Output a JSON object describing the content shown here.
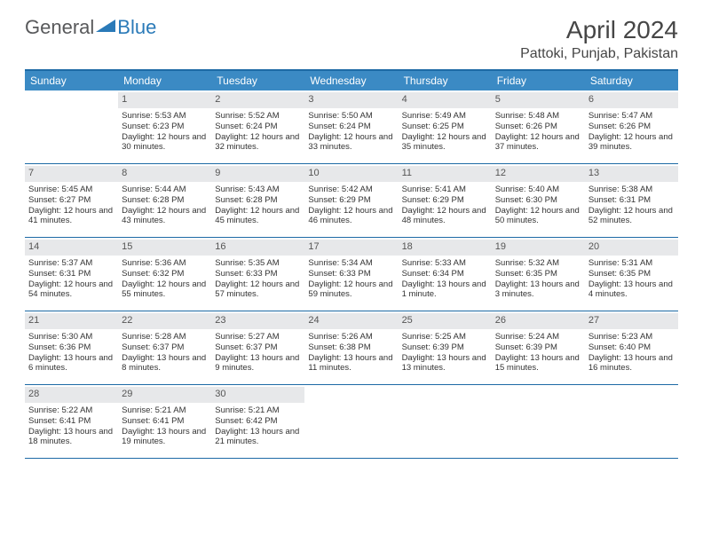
{
  "logo": {
    "text_left": "General",
    "text_right": "Blue"
  },
  "title": "April 2024",
  "location": "Pattoki, Punjab, Pakistan",
  "colors": {
    "header_bg": "#3b8ac4",
    "header_border": "#1d6aa5",
    "daynum_bg": "#e7e8ea",
    "text": "#333333",
    "title": "#464646",
    "logo_gray": "#58595b",
    "logo_blue": "#2a7ab8"
  },
  "day_headers": [
    "Sunday",
    "Monday",
    "Tuesday",
    "Wednesday",
    "Thursday",
    "Friday",
    "Saturday"
  ],
  "weeks": [
    [
      null,
      {
        "n": "1",
        "sr": "5:53 AM",
        "ss": "6:23 PM",
        "dl": "12 hours and 30 minutes."
      },
      {
        "n": "2",
        "sr": "5:52 AM",
        "ss": "6:24 PM",
        "dl": "12 hours and 32 minutes."
      },
      {
        "n": "3",
        "sr": "5:50 AM",
        "ss": "6:24 PM",
        "dl": "12 hours and 33 minutes."
      },
      {
        "n": "4",
        "sr": "5:49 AM",
        "ss": "6:25 PM",
        "dl": "12 hours and 35 minutes."
      },
      {
        "n": "5",
        "sr": "5:48 AM",
        "ss": "6:26 PM",
        "dl": "12 hours and 37 minutes."
      },
      {
        "n": "6",
        "sr": "5:47 AM",
        "ss": "6:26 PM",
        "dl": "12 hours and 39 minutes."
      }
    ],
    [
      {
        "n": "7",
        "sr": "5:45 AM",
        "ss": "6:27 PM",
        "dl": "12 hours and 41 minutes."
      },
      {
        "n": "8",
        "sr": "5:44 AM",
        "ss": "6:28 PM",
        "dl": "12 hours and 43 minutes."
      },
      {
        "n": "9",
        "sr": "5:43 AM",
        "ss": "6:28 PM",
        "dl": "12 hours and 45 minutes."
      },
      {
        "n": "10",
        "sr": "5:42 AM",
        "ss": "6:29 PM",
        "dl": "12 hours and 46 minutes."
      },
      {
        "n": "11",
        "sr": "5:41 AM",
        "ss": "6:29 PM",
        "dl": "12 hours and 48 minutes."
      },
      {
        "n": "12",
        "sr": "5:40 AM",
        "ss": "6:30 PM",
        "dl": "12 hours and 50 minutes."
      },
      {
        "n": "13",
        "sr": "5:38 AM",
        "ss": "6:31 PM",
        "dl": "12 hours and 52 minutes."
      }
    ],
    [
      {
        "n": "14",
        "sr": "5:37 AM",
        "ss": "6:31 PM",
        "dl": "12 hours and 54 minutes."
      },
      {
        "n": "15",
        "sr": "5:36 AM",
        "ss": "6:32 PM",
        "dl": "12 hours and 55 minutes."
      },
      {
        "n": "16",
        "sr": "5:35 AM",
        "ss": "6:33 PM",
        "dl": "12 hours and 57 minutes."
      },
      {
        "n": "17",
        "sr": "5:34 AM",
        "ss": "6:33 PM",
        "dl": "12 hours and 59 minutes."
      },
      {
        "n": "18",
        "sr": "5:33 AM",
        "ss": "6:34 PM",
        "dl": "13 hours and 1 minute."
      },
      {
        "n": "19",
        "sr": "5:32 AM",
        "ss": "6:35 PM",
        "dl": "13 hours and 3 minutes."
      },
      {
        "n": "20",
        "sr": "5:31 AM",
        "ss": "6:35 PM",
        "dl": "13 hours and 4 minutes."
      }
    ],
    [
      {
        "n": "21",
        "sr": "5:30 AM",
        "ss": "6:36 PM",
        "dl": "13 hours and 6 minutes."
      },
      {
        "n": "22",
        "sr": "5:28 AM",
        "ss": "6:37 PM",
        "dl": "13 hours and 8 minutes."
      },
      {
        "n": "23",
        "sr": "5:27 AM",
        "ss": "6:37 PM",
        "dl": "13 hours and 9 minutes."
      },
      {
        "n": "24",
        "sr": "5:26 AM",
        "ss": "6:38 PM",
        "dl": "13 hours and 11 minutes."
      },
      {
        "n": "25",
        "sr": "5:25 AM",
        "ss": "6:39 PM",
        "dl": "13 hours and 13 minutes."
      },
      {
        "n": "26",
        "sr": "5:24 AM",
        "ss": "6:39 PM",
        "dl": "13 hours and 15 minutes."
      },
      {
        "n": "27",
        "sr": "5:23 AM",
        "ss": "6:40 PM",
        "dl": "13 hours and 16 minutes."
      }
    ],
    [
      {
        "n": "28",
        "sr": "5:22 AM",
        "ss": "6:41 PM",
        "dl": "13 hours and 18 minutes."
      },
      {
        "n": "29",
        "sr": "5:21 AM",
        "ss": "6:41 PM",
        "dl": "13 hours and 19 minutes."
      },
      {
        "n": "30",
        "sr": "5:21 AM",
        "ss": "6:42 PM",
        "dl": "13 hours and 21 minutes."
      },
      null,
      null,
      null,
      null
    ]
  ],
  "labels": {
    "sunrise": "Sunrise:",
    "sunset": "Sunset:",
    "daylight": "Daylight:"
  }
}
